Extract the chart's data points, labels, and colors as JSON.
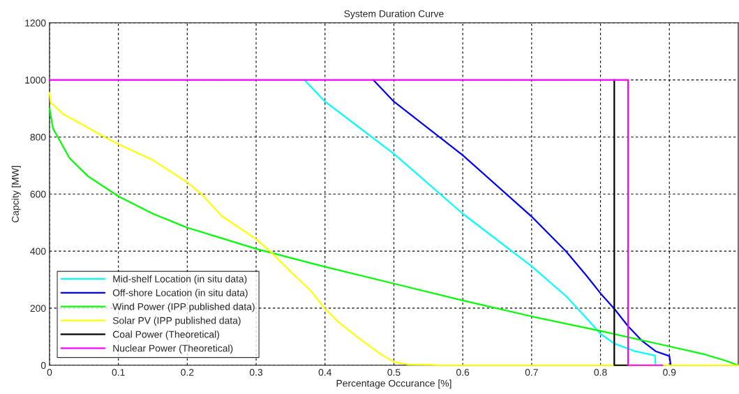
{
  "chart_data": {
    "type": "line",
    "title": "System Duration Curve",
    "xlabel": "Percentage Occurance [%]",
    "ylabel": "Capcity [MW]",
    "xlim": [
      0,
      1
    ],
    "ylim": [
      0,
      1200
    ],
    "xticks": [
      0,
      0.1,
      0.2,
      0.3,
      0.4,
      0.5,
      0.6,
      0.7,
      0.8,
      0.9
    ],
    "yticks": [
      0,
      200,
      400,
      600,
      800,
      1000,
      1200
    ],
    "grid": true,
    "legend": "bottom left",
    "line_style": "solid",
    "marker": "none",
    "series": [
      {
        "name": "Mid-shelf Location (in situ data)",
        "color": "#00ffff",
        "x": [
          0.37,
          0.4,
          0.5,
          0.6,
          0.7,
          0.75,
          0.78,
          0.8,
          0.82,
          0.85,
          0.879,
          0.88
        ],
        "values": [
          1000,
          924,
          741,
          531,
          347,
          242,
          164,
          110,
          76,
          49,
          34,
          0
        ]
      },
      {
        "name": "Off-shore Location (in situ data)",
        "color": "#0000ff",
        "x": [
          0.47,
          0.5,
          0.6,
          0.7,
          0.75,
          0.78,
          0.8,
          0.82,
          0.84,
          0.86,
          0.88,
          0.9,
          0.902
        ],
        "values": [
          1000,
          924,
          736,
          521,
          399,
          313,
          252,
          198,
          137,
          86,
          49,
          32,
          0
        ]
      },
      {
        "name": "Wind Power (IPP published data)",
        "color": "#00ff00",
        "x": [
          0,
          0.005,
          0.012,
          0.029,
          0.056,
          0.1,
          0.15,
          0.2,
          0.25,
          0.3,
          0.4,
          0.5,
          0.6,
          0.7,
          0.8,
          0.9,
          0.95,
          0.98,
          1.0
        ],
        "values": [
          900,
          830,
          800,
          726,
          662,
          592,
          531,
          482,
          445,
          408,
          345,
          286,
          227,
          171,
          120,
          66,
          39,
          17,
          0
        ]
      },
      {
        "name": "Solar PV (IPP published data)",
        "color": "#ffff00",
        "x": [
          0,
          0.002,
          0.02,
          0.05,
          0.08,
          0.1,
          0.15,
          0.2,
          0.22,
          0.25,
          0.3,
          0.32,
          0.35,
          0.38,
          0.4,
          0.42,
          0.45,
          0.48,
          0.5,
          0.52,
          0.555,
          0.56,
          1.0
        ],
        "values": [
          955,
          920,
          880,
          840,
          800,
          775,
          719,
          641,
          601,
          523,
          442,
          400,
          328,
          259,
          198,
          150,
          93,
          40,
          12,
          3,
          2,
          0,
          0
        ]
      },
      {
        "name": "Coal Power (Theoretical)",
        "color": "#000000",
        "x": [
          0.82,
          0.82,
          0.84
        ],
        "values": [
          1000,
          0,
          0
        ]
      },
      {
        "name": "Nuclear Power (Theoretical)",
        "color": "#ff00ff",
        "x": [
          0,
          0.84,
          0.84,
          0.89
        ],
        "values": [
          1000,
          1000,
          0,
          0
        ]
      }
    ]
  }
}
